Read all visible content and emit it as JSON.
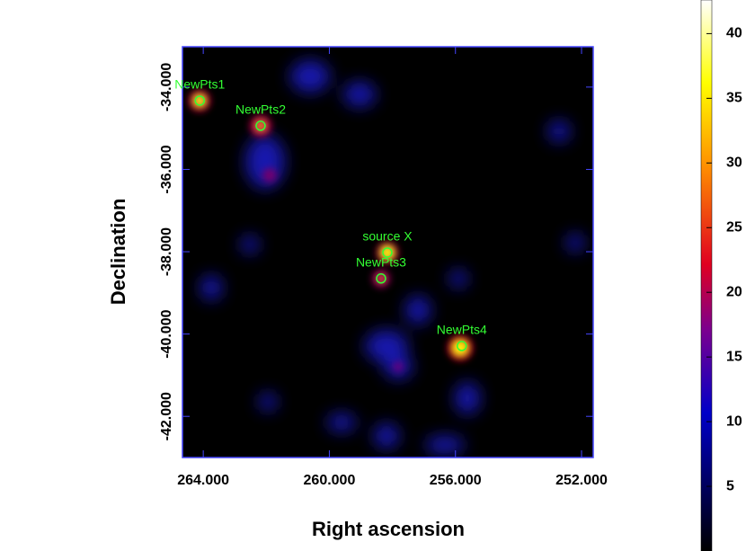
{
  "chart_data": {
    "type": "scatter",
    "x_label": "Right ascension",
    "y_label": "Declination",
    "xlim": [
      264.66,
      251.63
    ],
    "xticks": [
      {
        "value": 264,
        "label": "264.000"
      },
      {
        "value": 260,
        "label": "260.000"
      },
      {
        "value": 256,
        "label": "256.000"
      },
      {
        "value": 252,
        "label": "252.000"
      }
    ],
    "ylim": [
      -43.0,
      -33.02
    ],
    "yticks": [
      {
        "value": -34,
        "label": "-34.000"
      },
      {
        "value": -36,
        "label": "-36.000"
      },
      {
        "value": -38,
        "label": "-38.000"
      },
      {
        "value": -40,
        "label": "-40.000"
      },
      {
        "value": -42,
        "label": "-42.000"
      }
    ],
    "marker_color": "#33ff33",
    "points": [
      {
        "label": "NewPts1",
        "x": 264.11,
        "y": -34.33
      },
      {
        "label": "NewPts2",
        "x": 262.18,
        "y": -34.94
      },
      {
        "label": "source X",
        "x": 258.16,
        "y": -38.02
      },
      {
        "label": "NewPts3",
        "x": 258.36,
        "y": -38.65
      },
      {
        "label": "NewPts4",
        "x": 255.8,
        "y": -40.29
      }
    ],
    "colorbar": {
      "lim": [
        0,
        42.6
      ],
      "ticks": [
        5,
        10,
        15,
        20,
        25,
        30,
        35,
        40
      ]
    }
  }
}
